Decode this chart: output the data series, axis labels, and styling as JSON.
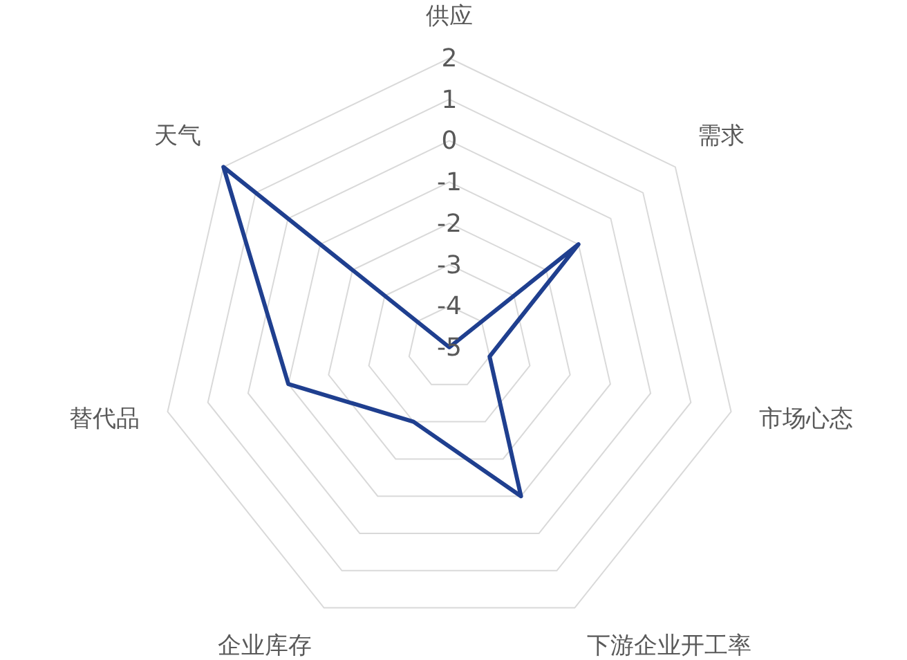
{
  "chart_data": {
    "type": "radar",
    "categories": [
      "供应",
      "需求",
      "市场心态",
      "下游企业开工率",
      "企业库存",
      "替代品",
      "天气"
    ],
    "series": [
      {
        "color": "#1f3f8f",
        "values": [
          -5,
          -1,
          -4,
          -1,
          -3,
          -1,
          2
        ]
      }
    ],
    "ylim": [
      -5,
      2
    ],
    "yticks": [
      -5,
      -4,
      -3,
      -2,
      -1,
      0,
      1,
      2
    ],
    "grid": true
  }
}
